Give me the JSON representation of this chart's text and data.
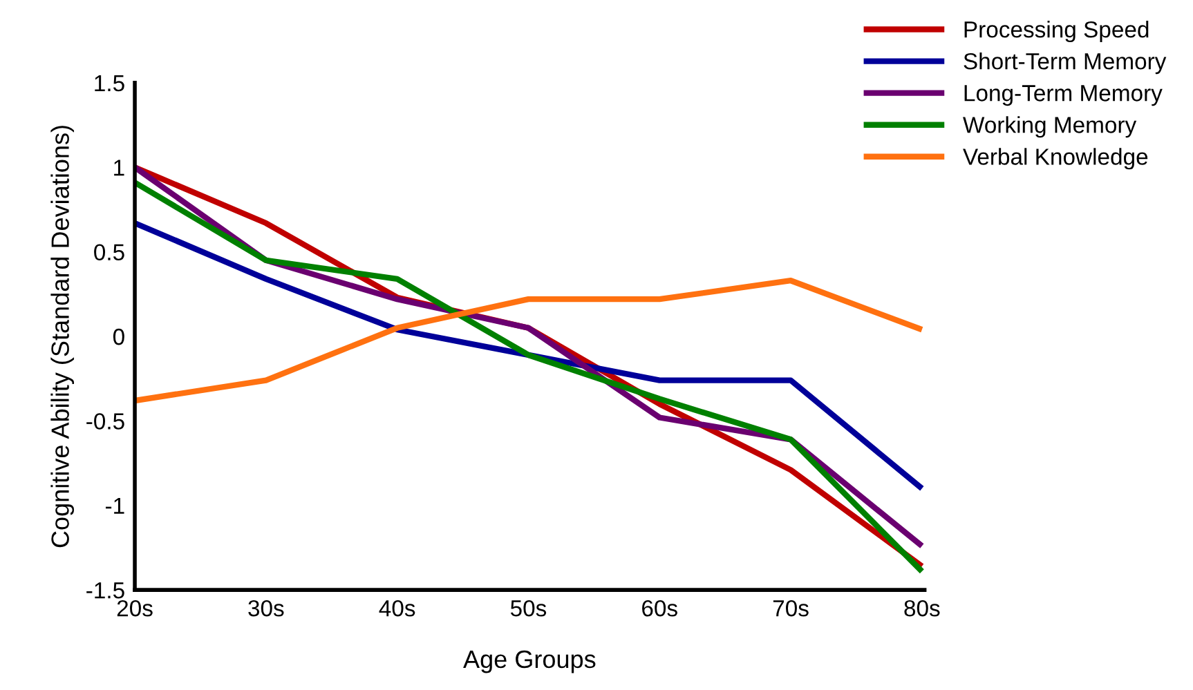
{
  "chart_data": {
    "type": "line",
    "xlabel": "Age Groups",
    "ylabel": "Cognitive Ability (Standard Deviations)",
    "categories": [
      "20s",
      "30s",
      "40s",
      "50s",
      "60s",
      "70s",
      "80s"
    ],
    "series": [
      {
        "name": "Processing Speed",
        "color": "#c00000",
        "values": [
          1.0,
          0.67,
          0.23,
          0.05,
          -0.4,
          -0.79,
          -1.36
        ]
      },
      {
        "name": "Short-Term Memory",
        "color": "#000099",
        "values": [
          0.67,
          0.34,
          0.04,
          -0.11,
          -0.26,
          -0.26,
          -0.9
        ]
      },
      {
        "name": "Long-Term Memory",
        "color": "#6a0070",
        "values": [
          1.0,
          0.45,
          0.22,
          0.05,
          -0.48,
          -0.61,
          -1.24
        ]
      },
      {
        "name": "Working Memory",
        "color": "#008000",
        "values": [
          0.91,
          0.45,
          0.34,
          -0.11,
          -0.37,
          -0.61,
          -1.39
        ]
      },
      {
        "name": "Verbal Knowledge",
        "color": "#ff7110",
        "values": [
          -0.38,
          -0.26,
          0.05,
          0.22,
          0.22,
          0.33,
          0.04
        ]
      }
    ],
    "ylim": [
      -1.5,
      1.5
    ],
    "yticks": [
      1.5,
      1,
      0.5,
      0,
      -0.5,
      -1,
      -1.5
    ],
    "grid": false,
    "legend": "top right",
    "marker": "none",
    "line_style": "solid"
  }
}
